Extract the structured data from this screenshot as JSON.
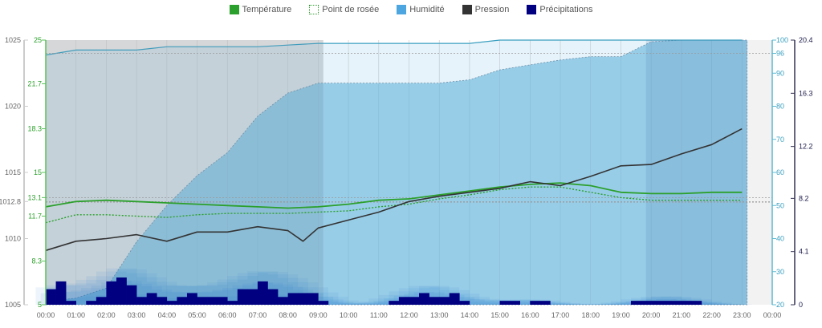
{
  "legend": [
    {
      "label": "Température",
      "color": "#2ca02c",
      "style": "solid"
    },
    {
      "label": "Point de rosée",
      "color": "#2ca02c",
      "style": "dotted"
    },
    {
      "label": "Humidité",
      "color": "#4da6e0",
      "style": "solid"
    },
    {
      "label": "Pression",
      "color": "#333333",
      "style": "solid"
    },
    {
      "label": "Précipitations",
      "color": "#000080",
      "style": "solid"
    }
  ],
  "chart_data": {
    "type": "line",
    "x_ticks": [
      "00:00",
      "01:00",
      "02:00",
      "03:00",
      "04:00",
      "05:00",
      "06:00",
      "07:00",
      "08:00",
      "09:00",
      "10:00",
      "11:00",
      "12:00",
      "13:00",
      "14:00",
      "15:00",
      "16:00",
      "17:00",
      "18:00",
      "19:00",
      "20:00",
      "21:00",
      "22:00",
      "23:00",
      "00:00"
    ],
    "axes": {
      "pressure": {
        "range": [
          1005,
          1025
        ],
        "ticks": [
          "1025",
          "1020",
          "1015",
          "1012.8",
          "1010",
          "1005"
        ],
        "color": "#666666",
        "side": "left"
      },
      "temperature": {
        "range": [
          5,
          25
        ],
        "ticks": [
          "25",
          "21.7",
          "18.3",
          "15",
          "13.1",
          "11.7",
          "8.3",
          "5"
        ],
        "color": "#2ca02c",
        "side": "left"
      },
      "humidity": {
        "range": [
          20,
          100
        ],
        "ticks": [
          "100",
          "96",
          "90",
          "80",
          "70",
          "60",
          "50",
          "40",
          "30",
          "20"
        ],
        "color": "#3a9fc0",
        "side": "right"
      },
      "precipitation": {
        "range": [
          0,
          20.4
        ],
        "ticks": [
          "20.4",
          "16.3",
          "12.2",
          "8.2",
          "4.1",
          "0"
        ],
        "color": "#1a1a4a",
        "side": "right"
      }
    },
    "reference_lines": {
      "temperature": 13.1,
      "pressure": 1012.8,
      "humidity": [
        96,
        51
      ]
    },
    "shaded_periods": [
      [
        "00:00",
        "09:10"
      ],
      [
        "19:50",
        "23:10"
      ]
    ],
    "series": [
      {
        "name": "Température",
        "axis": "temperature",
        "hours": [
          0,
          1,
          2,
          3,
          4,
          5,
          6,
          7,
          8,
          9,
          10,
          11,
          12,
          13,
          14,
          15,
          16,
          17,
          18,
          19,
          20,
          21,
          22,
          23
        ],
        "values": [
          12.4,
          12.8,
          12.9,
          12.8,
          12.7,
          12.6,
          12.5,
          12.4,
          12.3,
          12.4,
          12.6,
          12.9,
          13.0,
          13.3,
          13.6,
          13.9,
          14.1,
          14.2,
          14.0,
          13.5,
          13.4,
          13.4,
          13.5,
          13.5
        ]
      },
      {
        "name": "Point de rosée",
        "axis": "temperature",
        "hours": [
          0,
          1,
          2,
          3,
          4,
          5,
          6,
          7,
          8,
          9,
          10,
          11,
          12,
          13,
          14,
          15,
          16,
          17,
          18,
          19,
          20,
          21,
          22,
          23
        ],
        "values": [
          11.2,
          11.8,
          11.8,
          11.7,
          11.6,
          11.8,
          11.9,
          11.9,
          11.9,
          12.0,
          12.1,
          12.4,
          12.6,
          13.0,
          13.3,
          13.7,
          13.9,
          13.9,
          13.5,
          13.1,
          12.9,
          12.9,
          12.9,
          12.9
        ]
      },
      {
        "name": "Pression",
        "axis": "pressure",
        "hours": [
          0,
          1,
          2,
          3,
          4,
          5,
          6,
          7,
          8,
          8.5,
          9,
          10,
          11,
          12,
          13,
          14,
          15,
          16,
          17,
          18,
          19,
          20,
          21,
          22,
          23
        ],
        "values": [
          1009.1,
          1009.8,
          1010.0,
          1010.3,
          1009.8,
          1010.5,
          1010.5,
          1010.9,
          1010.6,
          1009.8,
          1010.8,
          1011.4,
          1012.0,
          1012.8,
          1013.2,
          1013.5,
          1013.8,
          1014.3,
          1014.0,
          1014.7,
          1015.5,
          1015.6,
          1016.4,
          1017.1,
          1018.3
        ]
      },
      {
        "name": "Humidité",
        "axis": "humidity",
        "hours": [
          0,
          1,
          2,
          3,
          4,
          5,
          6,
          7,
          8,
          9,
          10,
          11,
          12,
          13,
          14,
          15,
          16,
          17,
          18,
          19,
          20,
          21,
          22,
          23
        ],
        "values": [
          21,
          22,
          25,
          39,
          50,
          59,
          66,
          77,
          84,
          87,
          87,
          87,
          87,
          87,
          88,
          91,
          92.5,
          94,
          95,
          95,
          99.5,
          100,
          100,
          100
        ]
      },
      {
        "axis": "humidity",
        "hours": [
          0,
          1,
          2,
          3,
          4,
          5,
          6,
          7,
          8,
          9,
          10,
          11,
          12,
          13,
          14,
          15,
          16,
          17,
          18,
          19,
          20,
          21,
          22,
          23
        ],
        "values": [
          95.5,
          97,
          97,
          97,
          98,
          98,
          98,
          98,
          98.5,
          99,
          99,
          99,
          99,
          99,
          99,
          100,
          100,
          100,
          100,
          100,
          100,
          100,
          100,
          100
        ]
      },
      {
        "name": "Précipitations",
        "axis": "precipitation",
        "type": "bar",
        "step_hours": 0.3333,
        "values": [
          0.2,
          0.3,
          0.05,
          0,
          0.05,
          0.1,
          0.3,
          0.35,
          0.25,
          0.1,
          0.15,
          0.1,
          0.05,
          0.1,
          0.15,
          0.1,
          0.1,
          0.1,
          0.05,
          0.2,
          0.2,
          0.3,
          0.2,
          0.1,
          0.15,
          0.15,
          0.15,
          0.05,
          0,
          0,
          0,
          0,
          0,
          0,
          0.05,
          0.1,
          0.1,
          0.15,
          0.1,
          0.1,
          0.15,
          0.05,
          0,
          0,
          0,
          0.05,
          0.05,
          0,
          0.05,
          0.05,
          0,
          0,
          0,
          0,
          0,
          0,
          0,
          0,
          0.05,
          0.05,
          0.05,
          0.05,
          0.05,
          0.05,
          0.05,
          0,
          0,
          0,
          0,
          0,
          0,
          0
        ]
      }
    ]
  }
}
